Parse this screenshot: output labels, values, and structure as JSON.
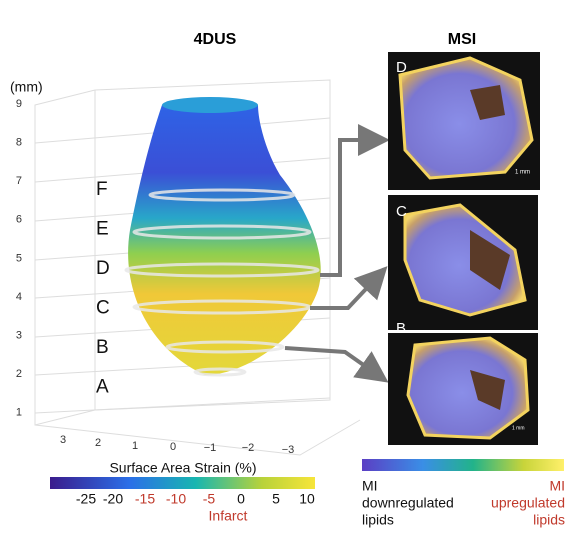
{
  "left_panel": {
    "title": "4DUS",
    "z_axis_label": "(mm)",
    "z_ticks": [
      "9",
      "8",
      "7",
      "6",
      "5",
      "4",
      "3",
      "2",
      "1"
    ],
    "x_ticks": [
      "3",
      "2",
      "1",
      "0",
      "−1",
      "−2",
      "−3"
    ],
    "slice_labels": [
      "F",
      "E",
      "D",
      "C",
      "B",
      "A"
    ]
  },
  "strain_colorbar": {
    "title": "Surface Area Strain (%)",
    "ticks": [
      "-25",
      "-20",
      "-15",
      "-10",
      "-5",
      "0",
      "5",
      "10"
    ],
    "note": "Infarct"
  },
  "right_panel": {
    "title": "MSI",
    "panel_labels": [
      "D",
      "C",
      "B"
    ],
    "scale_labels": [
      "1 mm",
      "1 mm"
    ]
  },
  "lipid_colorbar": {
    "left_label": [
      "MI",
      "downregulated",
      "lipids"
    ],
    "right_label": [
      "MI",
      "upregulated",
      "lipids"
    ]
  }
}
